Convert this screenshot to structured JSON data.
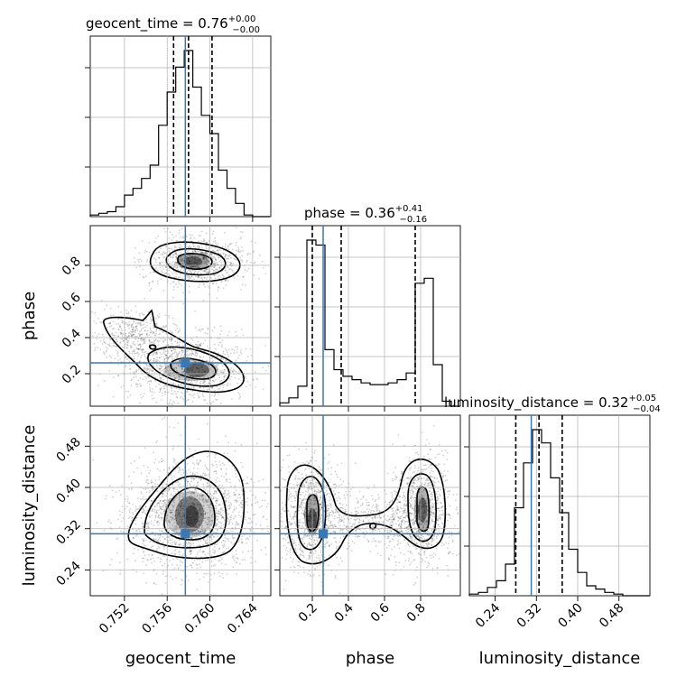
{
  "chart_data": {
    "type": "corner",
    "parameters": [
      "geocent_time",
      "phase",
      "luminosity_distance"
    ],
    "axis_labels": {
      "geocent_time": "geocent_time",
      "phase": "phase",
      "luminosity_distance": "luminosity_distance"
    },
    "titles": {
      "geocent_time": {
        "label": "geocent_time",
        "median": "0.76",
        "plus": "+0.00",
        "minus": "−0.00"
      },
      "phase": {
        "label": "phase",
        "median": "0.36",
        "plus": "+0.41",
        "minus": "−0.16"
      },
      "luminosity_distance": {
        "label": "luminosity_distance",
        "median": "0.32",
        "plus": "+0.05",
        "minus": "−0.04"
      }
    },
    "ranges": {
      "geocent_time": [
        0.7488,
        0.7657
      ],
      "phase": [
        0.02,
        1.02
      ],
      "luminosity_distance": [
        0.19,
        0.54
      ]
    },
    "ticks": {
      "geocent_time": {
        "values": [
          0.752,
          0.756,
          0.76,
          0.764
        ],
        "labels": [
          "0.752",
          "0.756",
          "0.760",
          "0.764"
        ]
      },
      "phase": {
        "values": [
          0.2,
          0.4,
          0.6,
          0.8
        ],
        "labels": [
          "0.2",
          "0.4",
          "0.6",
          "0.8"
        ]
      },
      "luminosity_distance": {
        "values": [
          0.24,
          0.32,
          0.4,
          0.48
        ],
        "labels": [
          "0.24",
          "0.32",
          "0.40",
          "0.48"
        ]
      }
    },
    "truths": {
      "geocent_time": 0.7577,
      "phase": 0.26,
      "luminosity_distance": 0.31
    },
    "quantiles": {
      "geocent_time": [
        0.7566,
        0.758,
        0.7602
      ],
      "phase": [
        0.2,
        0.36,
        0.77
      ],
      "luminosity_distance": [
        0.28,
        0.325,
        0.37
      ]
    },
    "histograms": {
      "geocent_time": {
        "edges": [
          0.7488,
          0.7496,
          0.7504,
          0.7512,
          0.752,
          0.7528,
          0.7536,
          0.7544,
          0.7552,
          0.756,
          0.7568,
          0.7576,
          0.7584,
          0.7592,
          0.76,
          0.7608,
          0.7616,
          0.7624,
          0.7632,
          0.764,
          0.7648,
          0.7656
        ],
        "counts": [
          0.01,
          0.02,
          0.03,
          0.06,
          0.13,
          0.17,
          0.23,
          0.31,
          0.55,
          0.75,
          0.9,
          1.0,
          0.78,
          0.61,
          0.5,
          0.28,
          0.17,
          0.08,
          0.01,
          0.0,
          0.0
        ]
      },
      "phase": {
        "edges": [
          0.02,
          0.07,
          0.12,
          0.17,
          0.22,
          0.27,
          0.32,
          0.37,
          0.42,
          0.47,
          0.52,
          0.57,
          0.62,
          0.67,
          0.72,
          0.77,
          0.82,
          0.87,
          0.92,
          0.97,
          1.02
        ],
        "counts": [
          0.02,
          0.05,
          0.12,
          1.0,
          0.97,
          0.34,
          0.22,
          0.18,
          0.16,
          0.14,
          0.13,
          0.13,
          0.14,
          0.16,
          0.2,
          0.74,
          0.77,
          0.25,
          0.03,
          0.0
        ]
      },
      "luminosity_distance": {
        "edges": [
          0.19,
          0.2075,
          0.225,
          0.2425,
          0.26,
          0.2775,
          0.295,
          0.3125,
          0.33,
          0.3475,
          0.365,
          0.3825,
          0.4,
          0.4175,
          0.435,
          0.4525,
          0.47,
          0.4875,
          0.505,
          0.5225,
          0.54
        ],
        "counts": [
          0.01,
          0.02,
          0.05,
          0.09,
          0.19,
          0.53,
          0.8,
          1.0,
          0.92,
          0.71,
          0.5,
          0.28,
          0.14,
          0.06,
          0.04,
          0.02,
          0.01,
          0.0,
          0.0,
          0.0
        ]
      }
    },
    "grid": true
  }
}
